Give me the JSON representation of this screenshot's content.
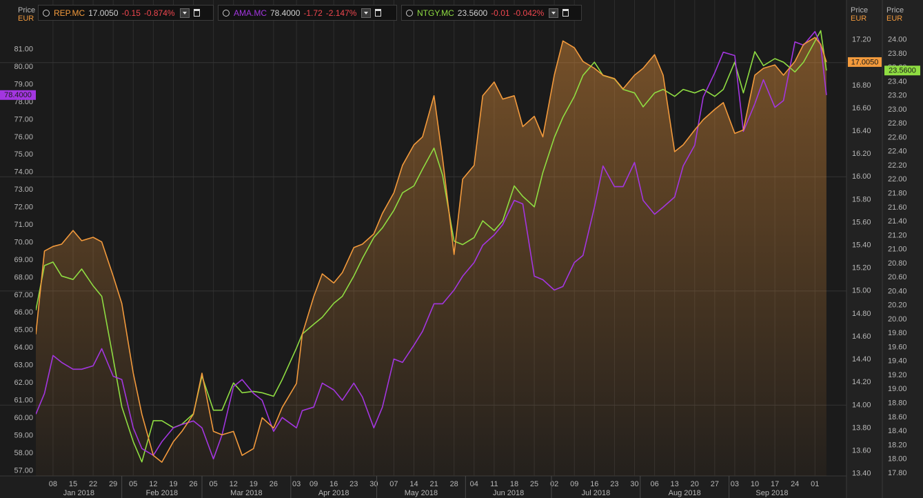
{
  "chart_data": {
    "type": "line",
    "axis_titles": {
      "y": {
        "title": "Price",
        "unit": "EUR"
      },
      "y2": {
        "title": "Price",
        "unit": "EUR"
      },
      "y3": {
        "title": "Price",
        "unit": "EUR"
      }
    },
    "xlim": [
      "2018-01-02",
      "2018-10-12"
    ],
    "xticks": [
      {
        "value": "2018-01-08",
        "label": "08"
      },
      {
        "value": "2018-01-15",
        "label": "15"
      },
      {
        "value": "2018-01-22",
        "label": "22"
      },
      {
        "value": "2018-01-29",
        "label": "29"
      },
      {
        "value": "2018-02-05",
        "label": "05"
      },
      {
        "value": "2018-02-12",
        "label": "12"
      },
      {
        "value": "2018-02-19",
        "label": "19"
      },
      {
        "value": "2018-02-26",
        "label": "26"
      },
      {
        "value": "2018-03-05",
        "label": "05"
      },
      {
        "value": "2018-03-12",
        "label": "12"
      },
      {
        "value": "2018-03-19",
        "label": "19"
      },
      {
        "value": "2018-03-26",
        "label": "26"
      },
      {
        "value": "2018-04-03",
        "label": "03"
      },
      {
        "value": "2018-04-09",
        "label": "09"
      },
      {
        "value": "2018-04-16",
        "label": "16"
      },
      {
        "value": "2018-04-23",
        "label": "23"
      },
      {
        "value": "2018-04-30",
        "label": "30"
      },
      {
        "value": "2018-05-07",
        "label": "07"
      },
      {
        "value": "2018-05-14",
        "label": "14"
      },
      {
        "value": "2018-05-21",
        "label": "21"
      },
      {
        "value": "2018-05-28",
        "label": "28"
      },
      {
        "value": "2018-06-04",
        "label": "04"
      },
      {
        "value": "2018-06-11",
        "label": "11"
      },
      {
        "value": "2018-06-18",
        "label": "18"
      },
      {
        "value": "2018-06-25",
        "label": "25"
      },
      {
        "value": "2018-07-02",
        "label": "02"
      },
      {
        "value": "2018-07-09",
        "label": "09"
      },
      {
        "value": "2018-07-16",
        "label": "16"
      },
      {
        "value": "2018-07-23",
        "label": "23"
      },
      {
        "value": "2018-07-30",
        "label": "30"
      },
      {
        "value": "2018-08-06",
        "label": "06"
      },
      {
        "value": "2018-08-13",
        "label": "13"
      },
      {
        "value": "2018-08-20",
        "label": "20"
      },
      {
        "value": "2018-08-27",
        "label": "27"
      },
      {
        "value": "2018-09-03",
        "label": "03"
      },
      {
        "value": "2018-09-10",
        "label": "10"
      },
      {
        "value": "2018-09-17",
        "label": "17"
      },
      {
        "value": "2018-09-24",
        "label": "24"
      },
      {
        "value": "2018-10-01",
        "label": "01"
      }
    ],
    "months": [
      {
        "value": "2018-01",
        "label": "Jan 2018"
      },
      {
        "value": "2018-02",
        "label": "Feb 2018"
      },
      {
        "value": "2018-03",
        "label": "Mar 2018"
      },
      {
        "value": "2018-04",
        "label": "Apr 2018"
      },
      {
        "value": "2018-05",
        "label": "May 2018"
      },
      {
        "value": "2018-06",
        "label": "Jun 2018"
      },
      {
        "value": "2018-07",
        "label": "Jul 2018"
      },
      {
        "value": "2018-08",
        "label": "Aug 2018"
      },
      {
        "value": "2018-09",
        "label": "Sep 2018"
      }
    ],
    "ylim": [
      56.7,
      83.5
    ],
    "yticks": [
      {
        "value": 57,
        "label": "57.00"
      },
      {
        "value": 58,
        "label": "58.00"
      },
      {
        "value": 59,
        "label": "59.00"
      },
      {
        "value": 60,
        "label": "60.00"
      },
      {
        "value": 61,
        "label": "61.00"
      },
      {
        "value": 62,
        "label": "62.00"
      },
      {
        "value": 63,
        "label": "63.00"
      },
      {
        "value": 64,
        "label": "64.00"
      },
      {
        "value": 65,
        "label": "65.00"
      },
      {
        "value": 66,
        "label": "66.00"
      },
      {
        "value": 67,
        "label": "67.00"
      },
      {
        "value": 68,
        "label": "68.00"
      },
      {
        "value": 69,
        "label": "69.00"
      },
      {
        "value": 70,
        "label": "70.00"
      },
      {
        "value": 71,
        "label": "71.00"
      },
      {
        "value": 72,
        "label": "72.00"
      },
      {
        "value": 73,
        "label": "73.00"
      },
      {
        "value": 74,
        "label": "74.00"
      },
      {
        "value": 75,
        "label": "75.00"
      },
      {
        "value": 76,
        "label": "76.00"
      },
      {
        "value": 77,
        "label": "77.00"
      },
      {
        "value": 78,
        "label": "78.00"
      },
      {
        "value": 79,
        "label": "79.00"
      },
      {
        "value": 80,
        "label": "80.00"
      },
      {
        "value": 81,
        "label": "81.00"
      }
    ],
    "y2lim": [
      13.38,
      17.5
    ],
    "y2ticks": [
      {
        "value": 13.4,
        "label": "13.40"
      },
      {
        "value": 13.6,
        "label": "13.60"
      },
      {
        "value": 13.8,
        "label": "13.80"
      },
      {
        "value": 14,
        "label": "14.00"
      },
      {
        "value": 14.2,
        "label": "14.20"
      },
      {
        "value": 14.4,
        "label": "14.40"
      },
      {
        "value": 14.6,
        "label": "14.60"
      },
      {
        "value": 14.8,
        "label": "14.80"
      },
      {
        "value": 15,
        "label": "15.00"
      },
      {
        "value": 15.2,
        "label": "15.20"
      },
      {
        "value": 15.4,
        "label": "15.40"
      },
      {
        "value": 15.6,
        "label": "15.60"
      },
      {
        "value": 15.8,
        "label": "15.80"
      },
      {
        "value": 16,
        "label": "16.00"
      },
      {
        "value": 16.2,
        "label": "16.20"
      },
      {
        "value": 16.4,
        "label": "16.40"
      },
      {
        "value": 16.6,
        "label": "16.60"
      },
      {
        "value": 16.8,
        "label": "16.80"
      },
      {
        "value": 17,
        "label": "17.00"
      },
      {
        "value": 17.2,
        "label": "17.20"
      }
    ],
    "y3lim": [
      17.76,
      24.49
    ],
    "y3ticks": [
      {
        "value": 17.8,
        "label": "17.80"
      },
      {
        "value": 18,
        "label": "18.00"
      },
      {
        "value": 18.2,
        "label": "18.20"
      },
      {
        "value": 18.4,
        "label": "18.40"
      },
      {
        "value": 18.6,
        "label": "18.60"
      },
      {
        "value": 18.8,
        "label": "18.80"
      },
      {
        "value": 19,
        "label": "19.00"
      },
      {
        "value": 19.2,
        "label": "19.20"
      },
      {
        "value": 19.4,
        "label": "19.40"
      },
      {
        "value": 19.6,
        "label": "19.60"
      },
      {
        "value": 19.8,
        "label": "19.80"
      },
      {
        "value": 20,
        "label": "20.00"
      },
      {
        "value": 20.2,
        "label": "20.20"
      },
      {
        "value": 20.4,
        "label": "20.40"
      },
      {
        "value": 20.6,
        "label": "20.60"
      },
      {
        "value": 20.8,
        "label": "20.80"
      },
      {
        "value": 21,
        "label": "21.00"
      },
      {
        "value": 21.2,
        "label": "21.20"
      },
      {
        "value": 21.4,
        "label": "21.40"
      },
      {
        "value": 21.6,
        "label": "21.60"
      },
      {
        "value": 21.8,
        "label": "21.80"
      },
      {
        "value": 22,
        "label": "22.00"
      },
      {
        "value": 22.2,
        "label": "22.20"
      },
      {
        "value": 22.4,
        "label": "22.40"
      },
      {
        "value": 22.6,
        "label": "22.60"
      },
      {
        "value": 22.8,
        "label": "22.80"
      },
      {
        "value": 23,
        "label": "23.00"
      },
      {
        "value": 23.2,
        "label": "23.20"
      },
      {
        "value": 23.4,
        "label": "23.40"
      },
      {
        "value": 23.6,
        "label": "23.60"
      },
      {
        "value": 23.8,
        "label": "23.80"
      },
      {
        "value": 24,
        "label": "24.00"
      }
    ],
    "x": [
      "2018-01-02",
      "2018-01-05",
      "2018-01-08",
      "2018-01-11",
      "2018-01-15",
      "2018-01-18",
      "2018-01-22",
      "2018-01-25",
      "2018-01-29",
      "2018-02-01",
      "2018-02-05",
      "2018-02-08",
      "2018-02-12",
      "2018-02-15",
      "2018-02-19",
      "2018-02-22",
      "2018-02-26",
      "2018-03-01",
      "2018-03-05",
      "2018-03-08",
      "2018-03-12",
      "2018-03-15",
      "2018-03-19",
      "2018-03-22",
      "2018-03-26",
      "2018-03-29",
      "2018-04-03",
      "2018-04-05",
      "2018-04-09",
      "2018-04-12",
      "2018-04-16",
      "2018-04-19",
      "2018-04-23",
      "2018-04-26",
      "2018-04-30",
      "2018-05-03",
      "2018-05-07",
      "2018-05-10",
      "2018-05-14",
      "2018-05-17",
      "2018-05-21",
      "2018-05-24",
      "2018-05-28",
      "2018-05-31",
      "2018-06-04",
      "2018-06-07",
      "2018-06-11",
      "2018-06-14",
      "2018-06-18",
      "2018-06-21",
      "2018-06-25",
      "2018-06-28",
      "2018-07-02",
      "2018-07-05",
      "2018-07-09",
      "2018-07-12",
      "2018-07-16",
      "2018-07-19",
      "2018-07-23",
      "2018-07-26",
      "2018-07-30",
      "2018-08-02",
      "2018-08-06",
      "2018-08-09",
      "2018-08-13",
      "2018-08-16",
      "2018-08-20",
      "2018-08-23",
      "2018-08-27",
      "2018-08-30",
      "2018-09-03",
      "2018-09-06",
      "2018-09-10",
      "2018-09-13",
      "2018-09-17",
      "2018-09-20",
      "2018-09-24",
      "2018-09-27",
      "2018-10-01",
      "2018-10-03",
      "2018-10-05"
    ],
    "series": [
      {
        "name": "REP.MC",
        "color": "#f39a3c",
        "axis": "y2",
        "area": true,
        "last_label": "17.0050",
        "change": "-0.15",
        "change_pct": "-0.874%",
        "values": [
          14.62,
          15.35,
          15.39,
          15.41,
          15.53,
          15.44,
          15.47,
          15.43,
          15.13,
          14.89,
          14.28,
          13.92,
          13.56,
          13.5,
          13.68,
          13.77,
          13.92,
          14.28,
          13.77,
          13.74,
          13.77,
          13.56,
          13.62,
          13.89,
          13.8,
          13.98,
          14.19,
          14.62,
          14.95,
          15.15,
          15.07,
          15.16,
          15.38,
          15.41,
          15.5,
          15.68,
          15.86,
          16.1,
          16.28,
          16.35,
          16.71,
          16.16,
          15.32,
          15.98,
          16.1,
          16.71,
          16.83,
          16.68,
          16.71,
          16.44,
          16.53,
          16.35,
          16.89,
          17.19,
          17.13,
          17.01,
          16.95,
          16.89,
          16.86,
          16.77,
          16.89,
          16.95,
          17.07,
          16.89,
          16.22,
          16.28,
          16.41,
          16.5,
          16.59,
          16.65,
          16.38,
          16.41,
          16.89,
          16.95,
          16.98,
          16.89,
          17.01,
          17.16,
          17.22,
          17.16,
          17.005
        ]
      },
      {
        "name": "AMA.MC",
        "color": "#a336e0",
        "axis": "y",
        "last_label": "78.4000",
        "change": "-1.72",
        "change_pct": "-2.147%",
        "values": [
          60.22,
          61.4,
          63.56,
          63.17,
          62.78,
          62.78,
          62.97,
          63.95,
          62.38,
          62.19,
          59.44,
          58.26,
          57.87,
          58.65,
          59.44,
          59.63,
          59.83,
          59.44,
          57.67,
          59.04,
          61.79,
          62.19,
          61.4,
          61.01,
          59.24,
          60.03,
          59.44,
          60.42,
          60.62,
          61.99,
          61.6,
          61.01,
          61.99,
          61.2,
          59.44,
          60.62,
          63.36,
          63.17,
          64.15,
          64.94,
          66.51,
          66.51,
          67.29,
          68.08,
          68.86,
          69.84,
          70.43,
          71.02,
          72.4,
          72.2,
          68.08,
          67.88,
          67.29,
          67.49,
          68.86,
          69.26,
          72.01,
          74.36,
          73.18,
          73.18,
          74.56,
          72.4,
          71.61,
          72.01,
          72.59,
          74.36,
          75.54,
          78.29,
          79.66,
          80.84,
          80.65,
          76.33,
          77.9,
          79.27,
          77.7,
          78.09,
          81.43,
          81.24,
          82.02,
          81.24,
          78.4
        ]
      },
      {
        "name": "NTGY.MC",
        "color": "#8fdd42",
        "axis": "y3",
        "last_label": "23.5600",
        "change": "-0.01",
        "change_pct": "-0.042%",
        "values": [
          20.13,
          20.77,
          20.82,
          20.62,
          20.57,
          20.72,
          20.48,
          20.33,
          19.44,
          18.75,
          18.25,
          17.96,
          18.55,
          18.55,
          18.45,
          18.5,
          18.65,
          19.19,
          18.7,
          18.7,
          19.09,
          18.95,
          18.97,
          18.95,
          18.9,
          19.14,
          19.59,
          19.79,
          19.93,
          20.03,
          20.23,
          20.33,
          20.62,
          20.87,
          21.17,
          21.31,
          21.56,
          21.81,
          21.91,
          22.15,
          22.45,
          22.06,
          21.12,
          21.07,
          21.17,
          21.41,
          21.27,
          21.41,
          21.91,
          21.76,
          21.61,
          22.1,
          22.6,
          22.89,
          23.19,
          23.49,
          23.68,
          23.49,
          23.44,
          23.29,
          23.24,
          23.04,
          23.24,
          23.29,
          23.19,
          23.29,
          23.24,
          23.29,
          23.19,
          23.29,
          23.68,
          23.24,
          23.83,
          23.63,
          23.73,
          23.68,
          23.54,
          23.68,
          23.98,
          24.13,
          23.56
        ]
      }
    ]
  }
}
